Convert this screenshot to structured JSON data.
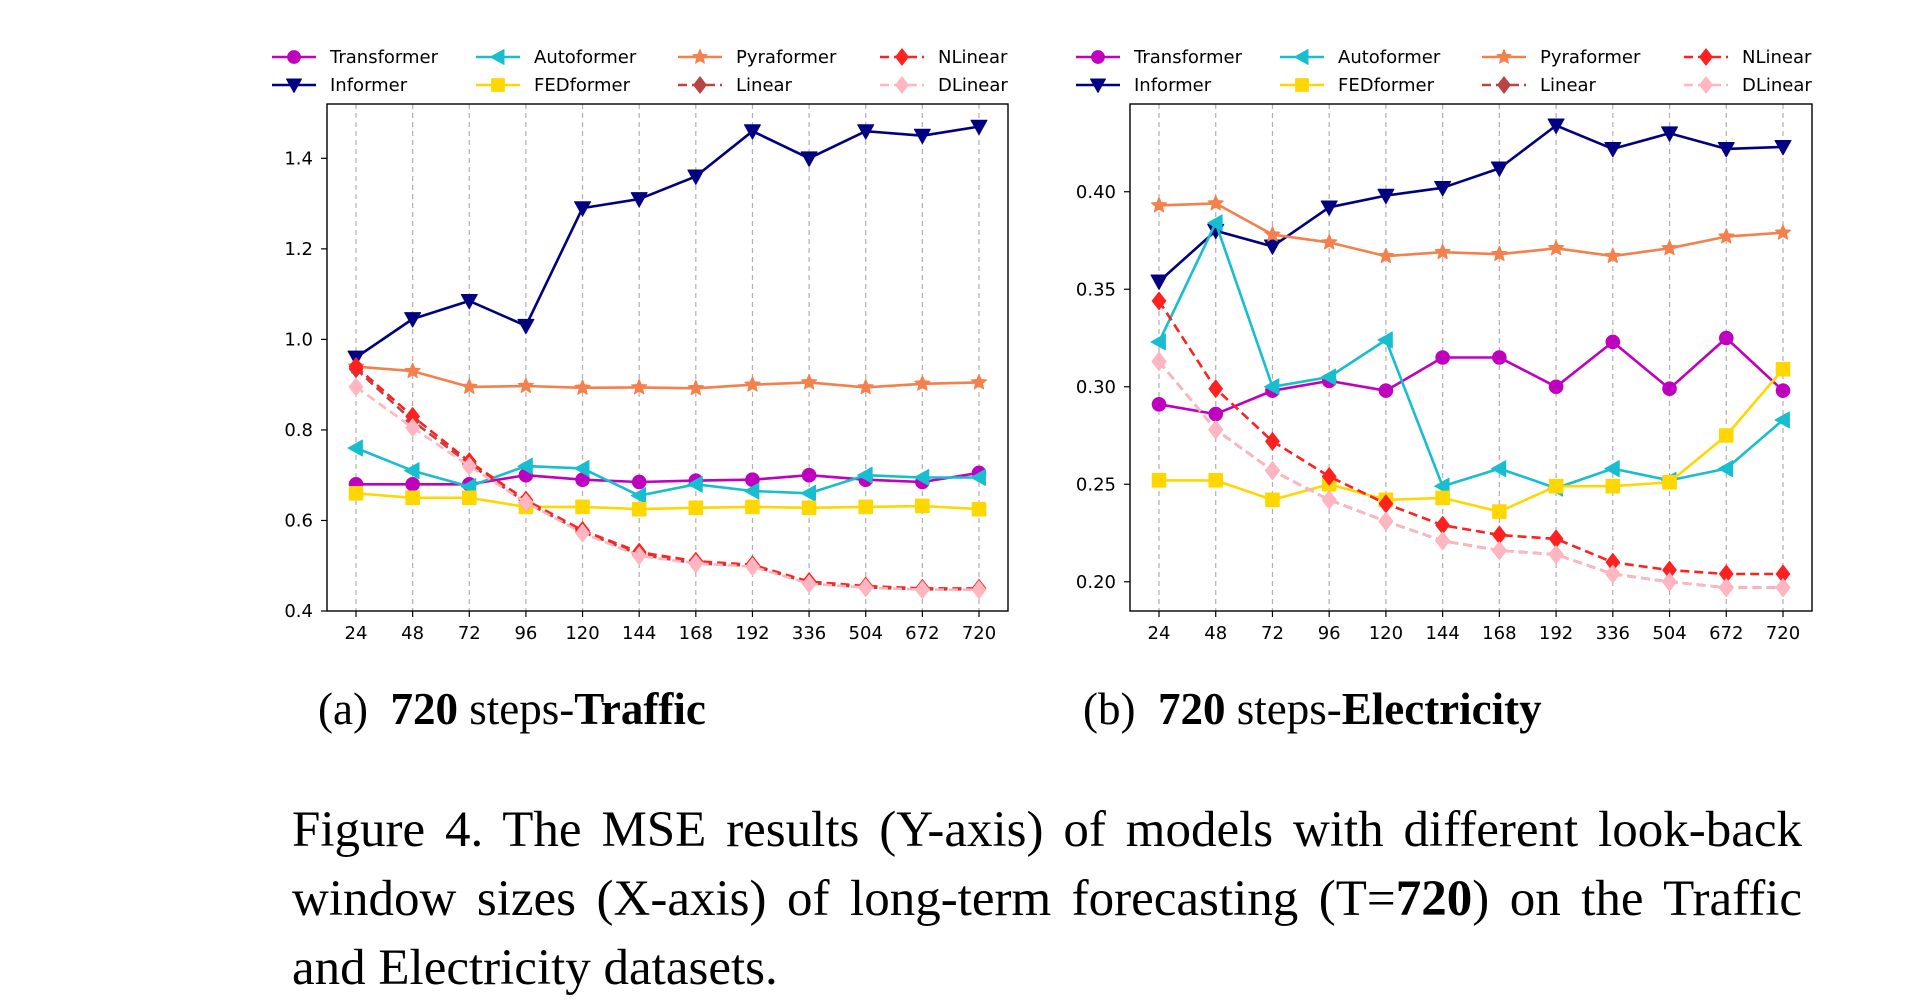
{
  "chart_data": [
    {
      "type": "line",
      "panel_label": "(a)",
      "caption": {
        "bold_prefix": "720",
        "middle": " steps-",
        "bold_suffix": "Traffic"
      },
      "categories": [
        "24",
        "48",
        "72",
        "96",
        "120",
        "144",
        "168",
        "192",
        "336",
        "504",
        "672",
        "720"
      ],
      "ylim": [
        0.4,
        1.52
      ],
      "yticks": [
        "0.4",
        "0.6",
        "0.8",
        "1.0",
        "1.2",
        "1.4"
      ],
      "grid": "vertical dashed",
      "legend": "top, 4 columns, 2 rows",
      "series": [
        {
          "name": "Transformer",
          "color": "#bf00bf",
          "marker": "circle",
          "dash": "solid",
          "values": [
            0.68,
            0.68,
            0.68,
            0.7,
            0.69,
            0.685,
            0.688,
            0.69,
            0.7,
            0.69,
            0.685,
            0.705
          ]
        },
        {
          "name": "Informer",
          "color": "#000080",
          "marker": "triangle-down",
          "dash": "solid",
          "values": [
            0.96,
            1.045,
            1.085,
            1.03,
            1.29,
            1.31,
            1.36,
            1.46,
            1.4,
            1.46,
            1.45,
            1.47
          ]
        },
        {
          "name": "Autoformer",
          "color": "#17becf",
          "marker": "triangle-left",
          "dash": "solid",
          "values": [
            0.76,
            0.71,
            0.675,
            0.72,
            0.715,
            0.655,
            0.68,
            0.665,
            0.66,
            0.7,
            0.695,
            0.695
          ]
        },
        {
          "name": "FEDformer",
          "color": "#ffd700",
          "marker": "square",
          "dash": "solid",
          "values": [
            0.66,
            0.65,
            0.65,
            0.63,
            0.63,
            0.625,
            0.628,
            0.63,
            0.628,
            0.63,
            0.632,
            0.625
          ]
        },
        {
          "name": "Pyraformer",
          "color": "#f4804d",
          "marker": "star",
          "dash": "solid",
          "values": [
            0.94,
            0.93,
            0.895,
            0.897,
            0.893,
            0.894,
            0.892,
            0.9,
            0.905,
            0.894,
            0.902,
            0.905
          ]
        },
        {
          "name": "Linear",
          "color": "#b84444",
          "marker": "diamond",
          "dash": "dashed",
          "values": [
            0.935,
            0.82,
            0.725,
            0.64,
            0.575,
            0.525,
            0.505,
            0.5,
            0.462,
            0.452,
            0.448,
            0.448
          ]
        },
        {
          "name": "NLinear",
          "color": "#ff2020",
          "marker": "diamond",
          "dash": "dashed",
          "values": [
            0.94,
            0.83,
            0.73,
            0.645,
            0.578,
            0.53,
            0.51,
            0.502,
            0.465,
            0.455,
            0.45,
            0.45
          ]
        },
        {
          "name": "DLinear",
          "color": "#ffb6c1",
          "marker": "diamond",
          "dash": "dashed",
          "values": [
            0.895,
            0.805,
            0.72,
            0.64,
            0.572,
            0.522,
            0.505,
            0.498,
            0.46,
            0.452,
            0.447,
            0.447
          ]
        }
      ]
    },
    {
      "type": "line",
      "panel_label": "(b)",
      "caption": {
        "bold_prefix": "720",
        "middle": " steps-",
        "bold_suffix": "Electricity"
      },
      "categories": [
        "24",
        "48",
        "72",
        "96",
        "120",
        "144",
        "168",
        "192",
        "336",
        "504",
        "672",
        "720"
      ],
      "ylim": [
        0.185,
        0.445
      ],
      "yticks": [
        "0.20",
        "0.25",
        "0.30",
        "0.35",
        "0.40"
      ],
      "grid": "vertical dashed",
      "legend": "top, 4 columns, 2 rows",
      "series": [
        {
          "name": "Transformer",
          "color": "#bf00bf",
          "marker": "circle",
          "dash": "solid",
          "values": [
            0.291,
            0.286,
            0.298,
            0.303,
            0.298,
            0.315,
            0.315,
            0.3,
            0.323,
            0.299,
            0.325,
            0.298
          ]
        },
        {
          "name": "Informer",
          "color": "#000080",
          "marker": "triangle-down",
          "dash": "solid",
          "values": [
            0.354,
            0.38,
            0.372,
            0.392,
            0.398,
            0.402,
            0.412,
            0.434,
            0.422,
            0.43,
            0.422,
            0.423
          ]
        },
        {
          "name": "Autoformer",
          "color": "#17becf",
          "marker": "triangle-left",
          "dash": "solid",
          "values": [
            0.323,
            0.384,
            0.3,
            0.305,
            0.324,
            0.249,
            0.258,
            0.248,
            0.258,
            0.252,
            0.258,
            0.283
          ]
        },
        {
          "name": "FEDformer",
          "color": "#ffd700",
          "marker": "square",
          "dash": "solid",
          "values": [
            0.252,
            0.252,
            0.242,
            0.25,
            0.242,
            0.243,
            0.236,
            0.249,
            0.249,
            0.251,
            0.275,
            0.309
          ]
        },
        {
          "name": "Pyraformer",
          "color": "#f4804d",
          "marker": "star",
          "dash": "solid",
          "values": [
            0.393,
            0.394,
            0.378,
            0.374,
            0.367,
            0.369,
            0.368,
            0.371,
            0.367,
            0.371,
            0.377,
            0.379
          ]
        },
        {
          "name": "Linear",
          "color": "#b84444",
          "marker": "diamond",
          "dash": "dashed",
          "values": [
            0.313,
            0.278,
            0.257,
            0.242,
            0.231,
            0.221,
            0.216,
            0.214,
            0.204,
            0.2,
            0.197,
            0.197
          ]
        },
        {
          "name": "NLinear",
          "color": "#ff2020",
          "marker": "diamond",
          "dash": "dashed",
          "values": [
            0.344,
            0.299,
            0.272,
            0.254,
            0.24,
            0.229,
            0.224,
            0.222,
            0.21,
            0.206,
            0.204,
            0.204
          ]
        },
        {
          "name": "DLinear",
          "color": "#ffb6c1",
          "marker": "diamond",
          "dash": "dashed",
          "values": [
            0.313,
            0.278,
            0.257,
            0.242,
            0.231,
            0.221,
            0.216,
            0.214,
            0.204,
            0.2,
            0.197,
            0.197
          ]
        }
      ]
    }
  ],
  "legend_order": [
    "Transformer",
    "Autoformer",
    "Pyraformer",
    "NLinear",
    "Informer",
    "FEDformer",
    "Linear",
    "DLinear"
  ],
  "figure_caption": {
    "prefix": "Figure 4. The MSE results (Y-axis) of models with different look-back window sizes (X-axis) of long-term forecasting (T=",
    "bold": "720",
    "suffix": ") on the Traffic and Electricity datasets."
  }
}
